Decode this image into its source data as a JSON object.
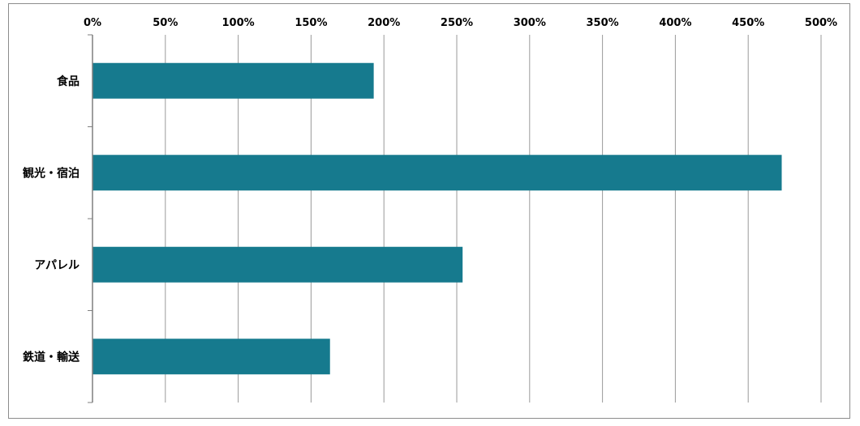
{
  "chart_data": {
    "type": "bar",
    "orientation": "horizontal",
    "categories": [
      "食品",
      "観光・宿泊",
      "アパレル",
      "鉄道・輸送"
    ],
    "values": [
      193,
      473,
      254,
      163
    ],
    "x_ticks": [
      "0%",
      "50%",
      "100%",
      "150%",
      "200%",
      "250%",
      "300%",
      "350%",
      "400%",
      "450%",
      "500%"
    ],
    "xlim": [
      0,
      500
    ],
    "unit": "%",
    "x_axis_position": "top",
    "grid": true,
    "legend": "none",
    "colors": {
      "bar": "#167A8E",
      "grid": "#9a9a9a",
      "axis": "#7f7f7f",
      "frame": "#8c8c8c"
    }
  }
}
